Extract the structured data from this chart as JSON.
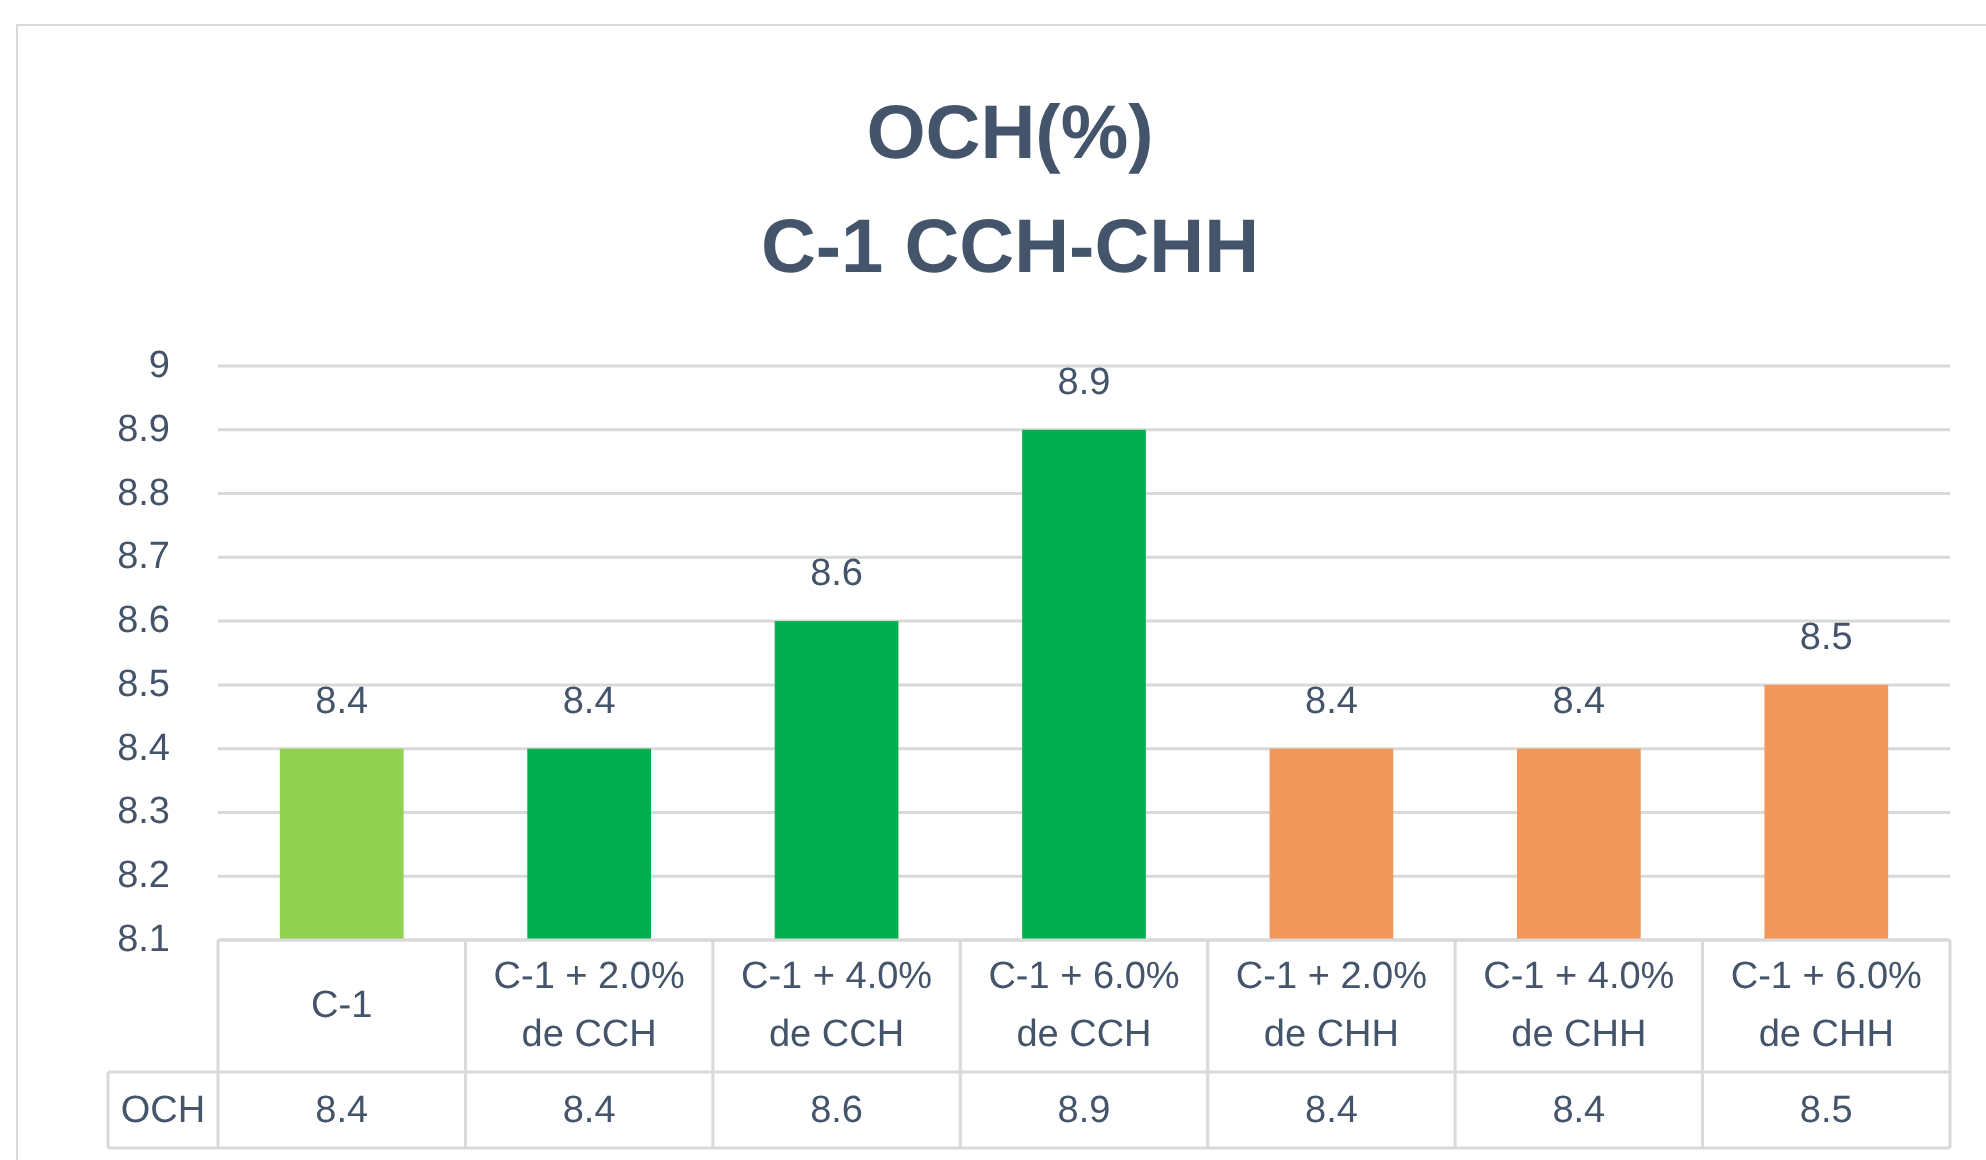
{
  "chart_data": {
    "type": "bar",
    "title": "OCH(%)",
    "subtitle": "C-1 CCH-CHH",
    "categories": [
      "C-1",
      "C-1 + 2.0% de CCH",
      "C-1 + 4.0% de CCH",
      "C-1 + 6.0% de CCH",
      "C-1 + 2.0% de CHH",
      "C-1 + 4.0% de CHH",
      "C-1 + 6.0% de CHH"
    ],
    "series": [
      {
        "name": "OCH",
        "values": [
          8.4,
          8.4,
          8.6,
          8.9,
          8.4,
          8.4,
          8.5
        ],
        "colors": [
          "#92d050",
          "#00b050",
          "#00b050",
          "#00b050",
          "#f0985a",
          "#f0985a",
          "#f0985a"
        ]
      }
    ],
    "ylim": [
      8.1,
      9
    ],
    "yticks": [
      8.1,
      8.2,
      8.3,
      8.4,
      8.5,
      8.6,
      8.7,
      8.8,
      8.9,
      9
    ],
    "grid": "y",
    "data_labels": true,
    "annotations": [
      "8.4",
      "8.4",
      "8.6",
      "8.9",
      "8.4",
      "8.4",
      "8.5"
    ]
  }
}
